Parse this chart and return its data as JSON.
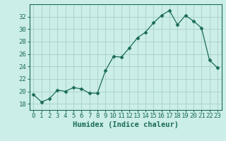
{
  "x": [
    0,
    1,
    2,
    3,
    4,
    5,
    6,
    7,
    8,
    9,
    10,
    11,
    12,
    13,
    14,
    15,
    16,
    17,
    18,
    19,
    20,
    21,
    22,
    23
  ],
  "y": [
    19.5,
    18.3,
    18.8,
    20.2,
    20.0,
    20.6,
    20.4,
    19.7,
    19.7,
    23.3,
    25.6,
    25.5,
    27.0,
    28.6,
    29.5,
    31.0,
    32.2,
    33.0,
    30.7,
    32.2,
    31.3,
    30.2,
    25.0,
    23.8
  ],
  "line_color": "#1a6b5a",
  "marker": "D",
  "marker_size": 2.5,
  "bg_color": "#cceee8",
  "grid_color": "#aad4cc",
  "axis_color": "#1a6b5a",
  "xlabel": "Humidex (Indice chaleur)",
  "ylim": [
    17,
    34
  ],
  "xlim": [
    -0.5,
    23.5
  ],
  "yticks": [
    18,
    20,
    22,
    24,
    26,
    28,
    30,
    32
  ],
  "xticks": [
    0,
    1,
    2,
    3,
    4,
    5,
    6,
    7,
    8,
    9,
    10,
    11,
    12,
    13,
    14,
    15,
    16,
    17,
    18,
    19,
    20,
    21,
    22,
    23
  ],
  "font_size": 6.5,
  "label_font_size": 7.5
}
